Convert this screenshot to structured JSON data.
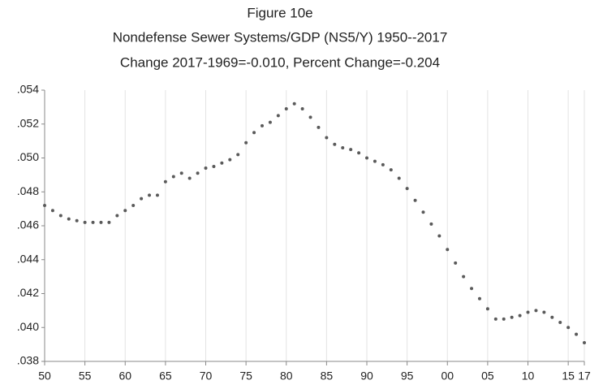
{
  "chart_data": {
    "type": "line",
    "title": "Figure 10e",
    "subtitle": "Nondefense Sewer Systems/GDP (NS5/Y) 1950--2017",
    "annotation": "Change 2017-1969=-0.010, Percent Change=-0.204",
    "x": [
      1950,
      1951,
      1952,
      1953,
      1954,
      1955,
      1956,
      1957,
      1958,
      1959,
      1960,
      1961,
      1962,
      1963,
      1964,
      1965,
      1966,
      1967,
      1968,
      1969,
      1970,
      1971,
      1972,
      1973,
      1974,
      1975,
      1976,
      1977,
      1978,
      1979,
      1980,
      1981,
      1982,
      1983,
      1984,
      1985,
      1986,
      1987,
      1988,
      1989,
      1990,
      1991,
      1992,
      1993,
      1994,
      1995,
      1996,
      1997,
      1998,
      1999,
      2000,
      2001,
      2002,
      2003,
      2004,
      2005,
      2006,
      2007,
      2008,
      2009,
      2010,
      2011,
      2012,
      2013,
      2014,
      2015,
      2016,
      2017
    ],
    "series": [
      {
        "name": "NS5/Y",
        "color": "#5a5a5a",
        "values": [
          0.0472,
          0.0469,
          0.0466,
          0.0464,
          0.0463,
          0.0462,
          0.0462,
          0.0462,
          0.0462,
          0.0466,
          0.0469,
          0.0472,
          0.0476,
          0.0478,
          0.0478,
          0.0486,
          0.0489,
          0.0491,
          0.0488,
          0.0491,
          0.0494,
          0.0495,
          0.0497,
          0.0499,
          0.0502,
          0.0509,
          0.0515,
          0.0519,
          0.0521,
          0.0525,
          0.0529,
          0.0532,
          0.0529,
          0.0524,
          0.0518,
          0.0512,
          0.0508,
          0.0506,
          0.0505,
          0.0503,
          0.05,
          0.0498,
          0.0496,
          0.0493,
          0.0488,
          0.0482,
          0.0475,
          0.0468,
          0.0461,
          0.0454,
          0.0446,
          0.0438,
          0.043,
          0.0423,
          0.0417,
          0.0411,
          0.0405,
          0.0405,
          0.0406,
          0.0407,
          0.0409,
          0.041,
          0.0409,
          0.0406,
          0.0403,
          0.04,
          0.0396,
          0.0391
        ]
      }
    ],
    "xlim": [
      1950,
      2017
    ],
    "ylim": [
      0.038,
      0.054
    ],
    "xticks": [
      {
        "value": 1950,
        "label": "50"
      },
      {
        "value": 1955,
        "label": "55"
      },
      {
        "value": 1960,
        "label": "60"
      },
      {
        "value": 1965,
        "label": "65"
      },
      {
        "value": 1970,
        "label": "70"
      },
      {
        "value": 1975,
        "label": "75"
      },
      {
        "value": 1980,
        "label": "80"
      },
      {
        "value": 1985,
        "label": "85"
      },
      {
        "value": 1990,
        "label": "90"
      },
      {
        "value": 1995,
        "label": "95"
      },
      {
        "value": 2000,
        "label": "00"
      },
      {
        "value": 2005,
        "label": "05"
      },
      {
        "value": 2010,
        "label": "10"
      },
      {
        "value": 2015,
        "label": "15"
      },
      {
        "value": 2017,
        "label": "17"
      }
    ],
    "yticks": [
      {
        "value": 0.038,
        "label": ".038"
      },
      {
        "value": 0.04,
        "label": ".040"
      },
      {
        "value": 0.042,
        "label": ".042"
      },
      {
        "value": 0.044,
        "label": ".044"
      },
      {
        "value": 0.046,
        "label": ".046"
      },
      {
        "value": 0.048,
        "label": ".048"
      },
      {
        "value": 0.05,
        "label": ".050"
      },
      {
        "value": 0.052,
        "label": ".052"
      },
      {
        "value": 0.054,
        "label": ".054"
      }
    ],
    "grid": "x"
  }
}
